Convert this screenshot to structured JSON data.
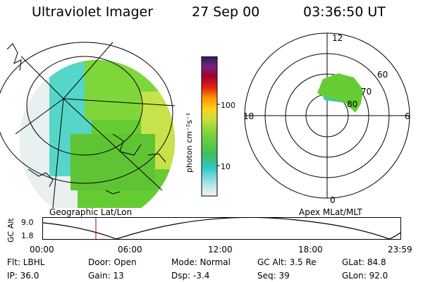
{
  "header": {
    "instrument": "Ultraviolet Imager",
    "date": "27 Sep 00",
    "time": "03:36:50 UT"
  },
  "colorbar": {
    "unit_label": "photon cm⁻²s⁻¹",
    "ticks": [
      "100",
      "10"
    ]
  },
  "left_panel": {
    "caption": "Geographic Lat/Lon"
  },
  "right_panel": {
    "caption": "Apex MLat/MLT",
    "mlt_labels": [
      "12",
      "18",
      "6",
      "0"
    ],
    "lat_labels": [
      "60",
      "70",
      "80"
    ]
  },
  "gc_alt_plot": {
    "axis_title": "GC Alt",
    "y_ticks": [
      "9.0",
      "1.8"
    ],
    "x_ticks": [
      "00:00",
      "06:00",
      "12:00",
      "18:00",
      "23:59"
    ]
  },
  "info": {
    "filter": "Flt: LBHL",
    "ip": "IP: 36.0",
    "door": "Door: Open",
    "gain": "Gain: 13",
    "mode": "Mode: Normal",
    "dsp": "Dsp:    -3.4",
    "gc_alt": "GC Alt: 3.5 Re",
    "seq": "Seq: 39",
    "glat": "GLat:   84.8",
    "glon": "GLon:   92.0"
  }
}
